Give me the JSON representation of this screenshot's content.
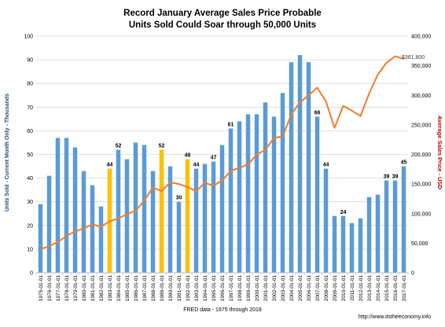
{
  "chart_data": {
    "type": "bar+line",
    "title_line1": "Record January Average Sales Price Probable",
    "title_line2": "Units Sold Could Soar through 50,000 Units",
    "xlabel": "FRED data - 1975 through 2018",
    "ylabel_left": "Units Sold - Current Month Only - Thousands",
    "ylabel_right": "Average Sales Price - USD",
    "source": "http://www.itstheeconomy.info",
    "ylim_left": [
      0,
      100
    ],
    "ylim_right": [
      0,
      400000
    ],
    "left_ticks": [
      0,
      10,
      20,
      30,
      40,
      50,
      60,
      70,
      80,
      90,
      100
    ],
    "right_ticks": [
      "0",
      "50,000",
      "100,000",
      "150,000",
      "200,000",
      "250,000",
      "300,000",
      "350,000",
      "400,000"
    ],
    "grid": true,
    "categories": [
      "1975-01-01",
      "1976-01-01",
      "1977-01-01",
      "1978-01-01",
      "1979-01-01",
      "1980-01-01",
      "1981-01-01",
      "1982-01-01",
      "1983-01-01",
      "1984-01-01",
      "1985-01-01",
      "1986-01-01",
      "1987-01-01",
      "1988-01-01",
      "1989-01-01",
      "1990-01-01",
      "1991-01-01",
      "1992-01-01",
      "1993-01-01",
      "1994-01-01",
      "1995-01-01",
      "1996-01-01",
      "1997-01-01",
      "1998-01-01",
      "1999-01-01",
      "2000-01-01",
      "2001-01-01",
      "2002-01-01",
      "2003-01-01",
      "2004-01-01",
      "2005-01-01",
      "2006-01-01",
      "2007-01-01",
      "2008-01-01",
      "2009-01-01",
      "2010-01-01",
      "2011-01-01",
      "2012-01-01",
      "2013-01-01",
      "2014-01-01",
      "2015-01-01",
      "2016-01-01",
      "2017-01-01"
    ],
    "series": [
      {
        "kind": "bar",
        "color": "#5b9bd5",
        "highlight_color": "#ffc000",
        "highlight_indices": [
          8,
          14,
          17
        ],
        "values": [
          29,
          41,
          57,
          57,
          53,
          43,
          37,
          28,
          44,
          52,
          48,
          55,
          54,
          43,
          52,
          45,
          30,
          48,
          44,
          46,
          47,
          54,
          61,
          64,
          67,
          67,
          72,
          66,
          76,
          89,
          92,
          89,
          66,
          44,
          24,
          24,
          21,
          23,
          32,
          33,
          39,
          39,
          45
        ],
        "labels": [
          "",
          "",
          "",
          "",
          "",
          "",
          "",
          "",
          "44",
          "52",
          "",
          "",
          "",
          "",
          "52",
          "",
          "30",
          "48",
          "44",
          "",
          "47",
          "",
          "61",
          "",
          "",
          "",
          "",
          "",
          "",
          "",
          "",
          "",
          "66",
          "44",
          "",
          "24",
          "",
          "",
          "",
          "",
          "39",
          "39",
          "45"
        ]
      },
      {
        "kind": "line",
        "color": "#ed7d31",
        "x_offset": 0.5,
        "values": [
          40000,
          45000,
          52000,
          62000,
          70000,
          75000,
          82000,
          78000,
          87000,
          92000,
          99000,
          105000,
          122000,
          144000,
          138000,
          153000,
          150000,
          145000,
          138000,
          152000,
          147000,
          156000,
          172000,
          178000,
          183000,
          200000,
          208000,
          228000,
          230000,
          268000,
          288000,
          300000,
          313000,
          290000,
          245000,
          282000,
          274000,
          265000,
          303000,
          335000,
          355000,
          366000,
          361800
        ],
        "end_label": "$361,800"
      }
    ]
  }
}
